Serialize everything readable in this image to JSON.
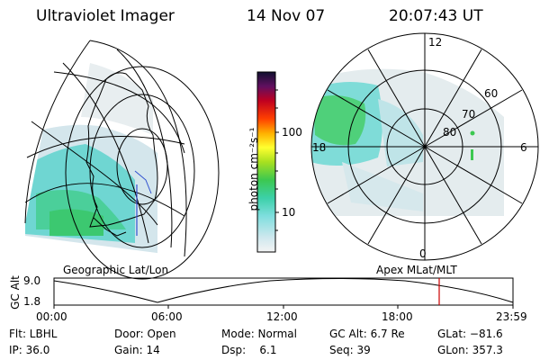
{
  "header": {
    "instrument": "Ultraviolet Imager",
    "date": "14 Nov 07",
    "time": "20:07:43 UT"
  },
  "colorbar": {
    "unit_label": "photon cm⁻²s⁻¹",
    "ticks": [
      "100",
      "10"
    ]
  },
  "polar": {
    "mlt_labels": [
      "12",
      "18",
      "6",
      "0"
    ],
    "mlat_labels": [
      "60",
      "70",
      "80"
    ]
  },
  "maps": {
    "left_caption": "Geographic Lat/Lon",
    "right_caption": "Apex MLat/MLT"
  },
  "altitude_plot": {
    "ylabel": "GC Alt",
    "yticks": [
      "9.0",
      "1.8"
    ],
    "xticks": [
      "00:00",
      "06:00",
      "12:00",
      "18:00",
      "23:59"
    ],
    "current_time_marker": "20:07:43"
  },
  "info": {
    "filter": "Flt: LBHL",
    "door": "Door: Open",
    "mode": "Mode: Normal",
    "gc_alt": "GC Alt: 6.7 Re",
    "glat": "GLat: −81.6",
    "ip": "IP: 36.0",
    "gain": "Gain: 14",
    "dsp": "Dsp:    6.1",
    "seq": "Seq: 39",
    "glon": "GLon: 357.3"
  },
  "colors": {
    "cyan": "#5fd8d8",
    "green": "#3cd070",
    "marker": "#cc0000"
  }
}
